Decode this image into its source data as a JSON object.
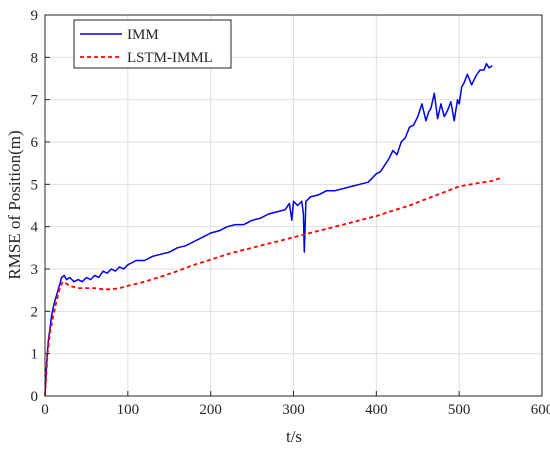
{
  "chart_data": {
    "type": "line",
    "xlabel": "t/s",
    "ylabel": "RMSE of Position(m)",
    "xlim": [
      0,
      600
    ],
    "ylim": [
      0,
      9
    ],
    "xticks": [
      0,
      100,
      200,
      300,
      400,
      500,
      600
    ],
    "yticks": [
      0,
      1,
      2,
      3,
      4,
      5,
      6,
      7,
      8,
      9
    ],
    "grid": true,
    "legend_position": "top-left",
    "series": [
      {
        "name": "IMM",
        "color": "#0000ee",
        "style": "solid",
        "x": [
          0,
          2,
          4,
          6,
          8,
          10,
          12,
          15,
          18,
          20,
          23,
          26,
          30,
          35,
          40,
          45,
          50,
          55,
          60,
          65,
          70,
          75,
          80,
          85,
          90,
          95,
          100,
          110,
          120,
          130,
          140,
          150,
          160,
          170,
          180,
          190,
          200,
          210,
          220,
          230,
          240,
          250,
          260,
          270,
          280,
          290,
          295,
          298,
          300,
          305,
          310,
          312,
          313,
          315,
          318,
          320,
          330,
          340,
          350,
          360,
          370,
          380,
          390,
          400,
          405,
          410,
          415,
          420,
          425,
          430,
          435,
          440,
          445,
          450,
          455,
          460,
          463,
          466,
          470,
          474,
          478,
          482,
          486,
          490,
          494,
          498,
          500,
          503,
          506,
          510,
          515,
          520,
          525,
          530,
          533,
          536,
          540
        ],
        "y": [
          0,
          0.8,
          1.3,
          1.6,
          1.9,
          2.1,
          2.25,
          2.45,
          2.65,
          2.8,
          2.85,
          2.75,
          2.8,
          2.7,
          2.75,
          2.7,
          2.8,
          2.75,
          2.85,
          2.8,
          2.95,
          2.9,
          3.0,
          2.95,
          3.05,
          3.0,
          3.1,
          3.2,
          3.2,
          3.3,
          3.35,
          3.4,
          3.5,
          3.55,
          3.65,
          3.75,
          3.85,
          3.9,
          4.0,
          4.05,
          4.05,
          4.15,
          4.2,
          4.3,
          4.35,
          4.4,
          4.55,
          4.15,
          4.6,
          4.5,
          4.6,
          4.3,
          3.4,
          4.6,
          4.65,
          4.7,
          4.75,
          4.85,
          4.85,
          4.9,
          4.95,
          5.0,
          5.05,
          5.25,
          5.3,
          5.45,
          5.6,
          5.8,
          5.7,
          6.0,
          6.1,
          6.35,
          6.4,
          6.6,
          6.9,
          6.5,
          6.7,
          6.8,
          7.15,
          6.55,
          6.9,
          6.6,
          6.75,
          6.95,
          6.5,
          7.0,
          6.9,
          7.3,
          7.4,
          7.6,
          7.35,
          7.55,
          7.7,
          7.7,
          7.85,
          7.75,
          7.8
        ]
      },
      {
        "name": "LSTM-IMML",
        "color": "#ff0000",
        "style": "dashed",
        "x": [
          0,
          3,
          6,
          10,
          14,
          18,
          20,
          22,
          26,
          30,
          40,
          50,
          60,
          70,
          80,
          90,
          100,
          120,
          140,
          160,
          180,
          200,
          220,
          240,
          260,
          280,
          300,
          320,
          340,
          360,
          380,
          400,
          420,
          440,
          460,
          480,
          500,
          520,
          540,
          550
        ],
        "y": [
          0,
          1.0,
          1.5,
          1.9,
          2.25,
          2.55,
          2.65,
          2.7,
          2.65,
          2.6,
          2.55,
          2.55,
          2.55,
          2.52,
          2.52,
          2.55,
          2.6,
          2.7,
          2.82,
          2.95,
          3.1,
          3.22,
          3.35,
          3.45,
          3.55,
          3.65,
          3.75,
          3.85,
          3.95,
          4.05,
          4.15,
          4.25,
          4.38,
          4.5,
          4.65,
          4.8,
          4.95,
          5.02,
          5.08,
          5.15
        ]
      }
    ]
  }
}
